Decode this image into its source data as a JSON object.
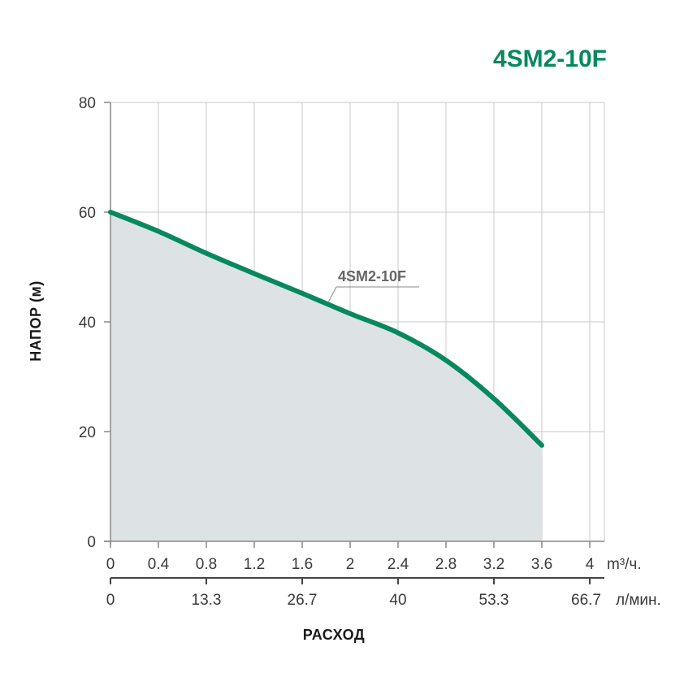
{
  "chart_data": {
    "type": "area",
    "title": "4SM2-10F",
    "ylabel": "НАПОР (м)",
    "xlabel": "РАСХОД",
    "ylim": [
      0,
      80
    ],
    "yticks": [
      0,
      20,
      40,
      60,
      80
    ],
    "xlim": [
      0,
      4.133
    ],
    "x_unit": "m³/ч.",
    "xticks": [
      "0",
      "0.4",
      "0.8",
      "1.2",
      "1.6",
      "2",
      "2.4",
      "2.8",
      "3.2",
      "3.6",
      "4"
    ],
    "x2_unit": "л/мин.",
    "x2_ticks": [
      {
        "label": "0",
        "at": 0
      },
      {
        "label": "13.3",
        "at": 0.8
      },
      {
        "label": "26.7",
        "at": 1.6
      },
      {
        "label": "40",
        "at": 2.4
      },
      {
        "label": "53.3",
        "at": 3.2
      },
      {
        "label": "66.7",
        "at": 4.0
      }
    ],
    "grid": true,
    "series": [
      {
        "name": "4SM2-10F",
        "x": [
          0,
          0.4,
          0.8,
          1.2,
          1.6,
          2.0,
          2.4,
          2.8,
          3.2,
          3.6
        ],
        "y": [
          60,
          56.5,
          52.5,
          48.8,
          45.2,
          41.5,
          38,
          33,
          26,
          17.5
        ]
      }
    ],
    "colors": {
      "curve": "#07885e",
      "fill": "#dde3e4",
      "grid": "#c9c9c9",
      "title": "#07885e"
    }
  }
}
